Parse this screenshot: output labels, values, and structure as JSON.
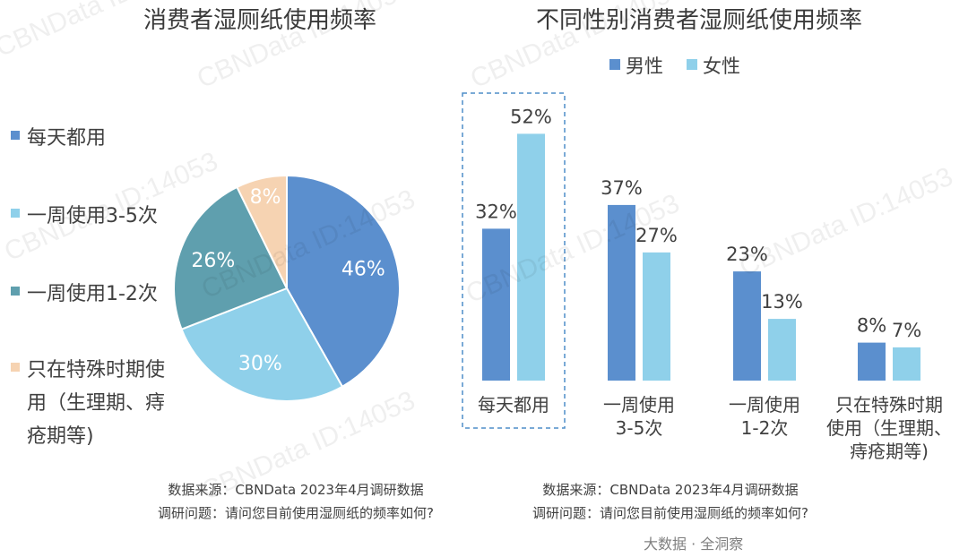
{
  "colors": {
    "blue_dark": "#5b8fce",
    "blue_light": "#8fd0ea",
    "teal": "#5f9fae",
    "peach": "#f6d3b2",
    "text": "#404040"
  },
  "chart_data": [
    {
      "type": "pie",
      "title": "消费者湿厕纸使用频率",
      "slices": [
        {
          "label": "每天都用",
          "value": 46,
          "display": "46%",
          "color": "#5b8fce"
        },
        {
          "label": "一周使用3-5次",
          "value": 30,
          "display": "30%",
          "color": "#8fd0ea"
        },
        {
          "label": "一周使用1-2次",
          "value": 26,
          "display": "26%",
          "color": "#5f9fae"
        },
        {
          "label": "只在特殊时期使用（生理期、痔疮期等)",
          "value": 8,
          "display": "8%",
          "color": "#f6d3b2"
        }
      ],
      "legend_position": "left"
    },
    {
      "type": "bar",
      "title": "不同性别消费者湿厕纸使用频率",
      "categories": [
        "每天都用",
        "一周使用3-5次",
        "一周使用1-2次",
        "只在特殊时期使用（生理期、痔疮期等)"
      ],
      "series": [
        {
          "name": "男性",
          "values": [
            32,
            37,
            23,
            8
          ],
          "color": "#5b8fce"
        },
        {
          "name": "女性",
          "values": [
            52,
            27,
            13,
            7
          ],
          "color": "#8fd0ea"
        }
      ],
      "highlighted_category": "每天都用",
      "legend_position": "top",
      "grid": false
    }
  ],
  "pie_legend": [
    {
      "lines": [
        "每天都用"
      ],
      "color": "#5b8fce"
    },
    {
      "lines": [
        "一周使用3-5次"
      ],
      "color": "#8fd0ea"
    },
    {
      "lines": [
        "一周使用1-2次"
      ],
      "color": "#5f9fae"
    },
    {
      "lines": [
        "只在特殊时期使",
        "用（生理期、痔",
        "疮期等)"
      ],
      "color": "#f6d3b2"
    }
  ],
  "bar_category_lines": [
    [
      "每天都用"
    ],
    [
      "一周使用",
      "3-5次"
    ],
    [
      "一周使用",
      "1-2次"
    ],
    [
      "只在特殊时期",
      "使用（生理期、",
      "痔疮期等)"
    ]
  ],
  "source_left": {
    "line1": "数据来源：CBNData 2023年4月调研数据",
    "line2": "调研问题：请问您目前使用湿厕纸的频率如何?"
  },
  "source_right": {
    "line1": "数据来源：CBNData 2023年4月调研数据",
    "line2": "调研问题：请问您目前使用湿厕纸的频率如何?"
  },
  "brand": "大数据 · 全洞察",
  "watermarks": [
    "CBNData ID:14053",
    "CBNData ID:14053",
    "CBNData ID:14053",
    "CBNData ID:14053",
    "CBNData ID:14053",
    "CBNData ID:14053",
    "CBNData ID:14053",
    "CBNData ID:14053"
  ]
}
